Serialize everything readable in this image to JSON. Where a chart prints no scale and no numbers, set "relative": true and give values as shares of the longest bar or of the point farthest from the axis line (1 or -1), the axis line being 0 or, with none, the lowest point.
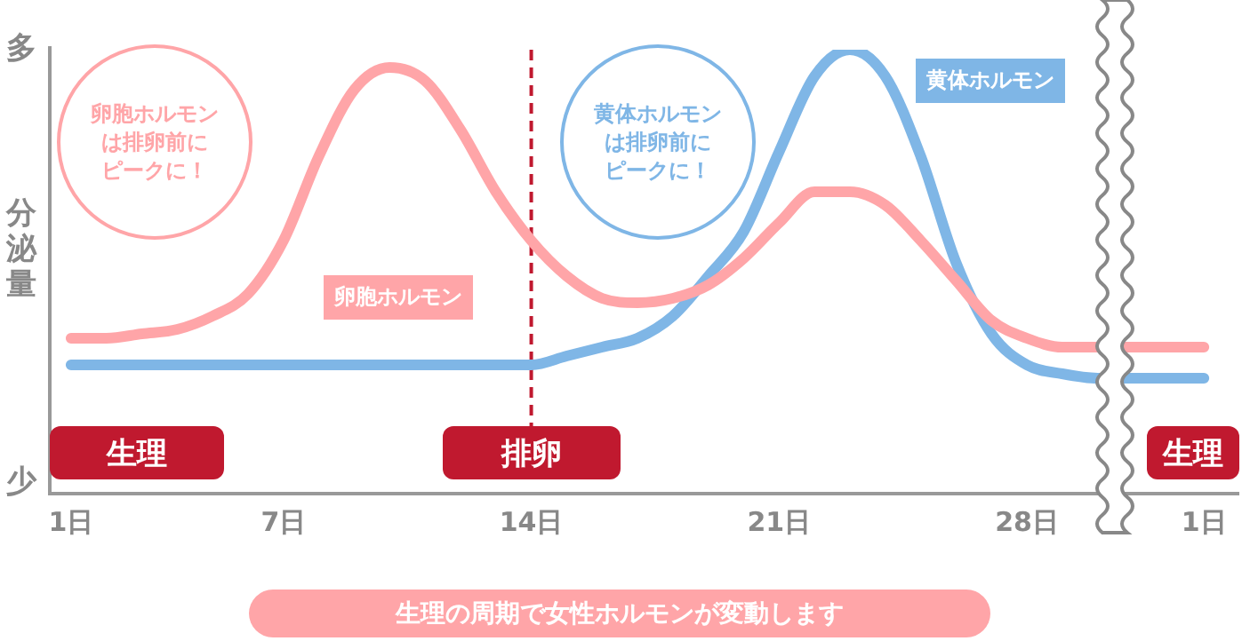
{
  "chart_data": {
    "type": "line",
    "relative": true,
    "ylabel": "分泌量",
    "categories": [
      "1日",
      null,
      null,
      null,
      null,
      null,
      "7日",
      null,
      null,
      null,
      null,
      null,
      null,
      "14日",
      null,
      null,
      null,
      null,
      null,
      null,
      "21日",
      null,
      null,
      null,
      null,
      null,
      null,
      "28日",
      null,
      null,
      null,
      null,
      "1日"
    ],
    "series": [
      {
        "name": "卵胞ホルモン",
        "color": "#ffa5a8",
        "values": [
          0.35,
          0.35,
          0.36,
          0.37,
          0.4,
          0.45,
          0.57,
          0.76,
          0.91,
          0.96,
          0.93,
          0.82,
          0.68,
          0.57,
          0.49,
          0.44,
          0.43,
          0.44,
          0.47,
          0.53,
          0.61,
          0.68,
          0.68,
          0.65,
          0.57,
          0.48,
          0.39,
          0.35,
          0.33,
          0.33,
          0.33,
          0.33,
          0.33
        ]
      },
      {
        "name": "黄体ホルモン",
        "color": "#7fb6e6",
        "values": [
          0.29,
          0.29,
          0.29,
          0.29,
          0.29,
          0.29,
          0.29,
          0.29,
          0.29,
          0.29,
          0.29,
          0.29,
          0.29,
          0.29,
          0.31,
          0.33,
          0.35,
          0.4,
          0.49,
          0.59,
          0.77,
          0.94,
          1.0,
          0.94,
          0.76,
          0.52,
          0.36,
          0.29,
          0.27,
          0.26,
          0.26,
          0.26,
          0.26
        ]
      }
    ],
    "ref_lines": [
      {
        "axis": "x",
        "value": "14日",
        "label": "排卵",
        "color": "#c0192f",
        "line_style": "dashed"
      }
    ],
    "annotations": [
      "多",
      "少",
      "卵胞ホルモンは排卵前にピークに！",
      "黄体ホルモンは排卵前にピークに！",
      "生理",
      "生理",
      "生理の周期で女性ホルモンが変動します"
    ],
    "grid": false,
    "legend": false,
    "marker": "none",
    "line_style": "solid"
  }
}
